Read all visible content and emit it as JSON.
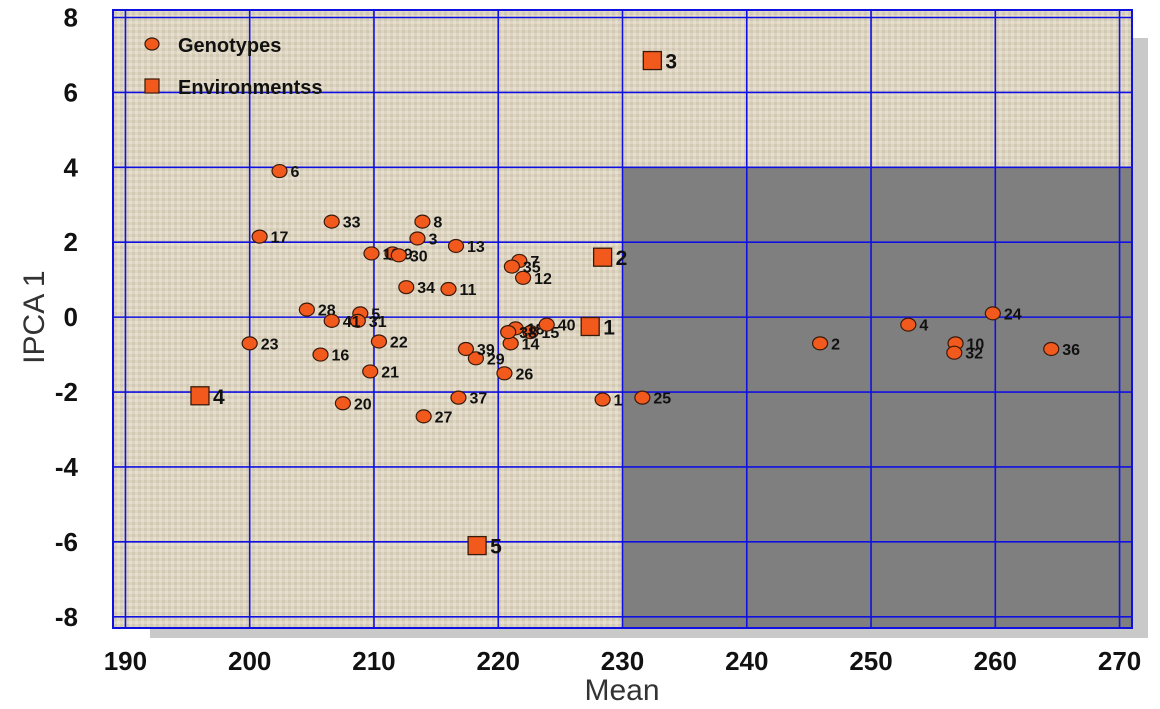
{
  "chart_data": {
    "type": "scatter",
    "title": "",
    "xlabel": "Mean",
    "ylabel": "IPCA 1",
    "xlim": [
      189,
      271
    ],
    "ylim": [
      -8.3,
      8.2
    ],
    "x_ticks": [
      190,
      200,
      210,
      220,
      230,
      240,
      250,
      260,
      270
    ],
    "y_ticks": [
      8,
      6,
      4,
      2,
      0,
      -2,
      -4,
      -6,
      -8
    ],
    "grid": true,
    "legend_position": "top-left",
    "colors": {
      "marker_fill": "#f25a1d",
      "marker_stroke": "#3a1a0a",
      "grid": "#1010e0",
      "plot_background": "#ddd5c2",
      "shaded_region": "#7f7f7f"
    },
    "shaded_region": {
      "x": [
        230,
        271
      ],
      "y": [
        -8.3,
        4
      ]
    },
    "series": [
      {
        "name": "Genotypes",
        "marker": "circle",
        "points": [
          {
            "label": "1",
            "x": 228.4,
            "y": -2.2
          },
          {
            "label": "2",
            "x": 245.9,
            "y": -0.7
          },
          {
            "label": "3",
            "x": 213.5,
            "y": 2.1
          },
          {
            "label": "4",
            "x": 253.0,
            "y": -0.2
          },
          {
            "label": "5",
            "x": 208.9,
            "y": 0.1
          },
          {
            "label": "6",
            "x": 202.4,
            "y": 3.9
          },
          {
            "label": "7",
            "x": 221.7,
            "y": 1.5
          },
          {
            "label": "8",
            "x": 213.9,
            "y": 2.55
          },
          {
            "label": "9",
            "x": 211.5,
            "y": 1.7
          },
          {
            "label": "10",
            "x": 256.8,
            "y": -0.7
          },
          {
            "label": "11",
            "x": 216.0,
            "y": 0.75
          },
          {
            "label": "12",
            "x": 222.0,
            "y": 1.05
          },
          {
            "label": "13",
            "x": 216.6,
            "y": 1.9
          },
          {
            "label": "14",
            "x": 221.0,
            "y": -0.7
          },
          {
            "label": "15",
            "x": 222.6,
            "y": -0.4
          },
          {
            "label": "16",
            "x": 205.7,
            "y": -1.0
          },
          {
            "label": "17",
            "x": 200.8,
            "y": 2.15
          },
          {
            "label": "18",
            "x": 221.4,
            "y": -0.3
          },
          {
            "label": "19",
            "x": 209.8,
            "y": 1.7
          },
          {
            "label": "20",
            "x": 207.5,
            "y": -2.3
          },
          {
            "label": "21",
            "x": 209.7,
            "y": -1.45
          },
          {
            "label": "22",
            "x": 210.4,
            "y": -0.65
          },
          {
            "label": "23",
            "x": 200.0,
            "y": -0.7
          },
          {
            "label": "24",
            "x": 259.8,
            "y": 0.1
          },
          {
            "label": "25",
            "x": 231.6,
            "y": -2.15
          },
          {
            "label": "26",
            "x": 220.5,
            "y": -1.5
          },
          {
            "label": "27",
            "x": 214.0,
            "y": -2.65
          },
          {
            "label": "28",
            "x": 204.6,
            "y": 0.2
          },
          {
            "label": "29",
            "x": 218.2,
            "y": -1.1
          },
          {
            "label": "30",
            "x": 212.0,
            "y": 1.65
          },
          {
            "label": "31",
            "x": 208.7,
            "y": -0.1
          },
          {
            "label": "32",
            "x": 256.7,
            "y": -0.95
          },
          {
            "label": "33",
            "x": 206.6,
            "y": 2.55
          },
          {
            "label": "34",
            "x": 212.6,
            "y": 0.8
          },
          {
            "label": "35",
            "x": 221.1,
            "y": 1.35
          },
          {
            "label": "36",
            "x": 264.5,
            "y": -0.85
          },
          {
            "label": "37",
            "x": 216.8,
            "y": -2.15
          },
          {
            "label": "38",
            "x": 220.8,
            "y": -0.4
          },
          {
            "label": "39",
            "x": 217.4,
            "y": -0.85
          },
          {
            "label": "40",
            "x": 223.9,
            "y": -0.2
          },
          {
            "label": "41",
            "x": 206.6,
            "y": -0.1
          }
        ]
      },
      {
        "name": "Environmentss",
        "marker": "square",
        "points": [
          {
            "label": "1",
            "x": 227.4,
            "y": -0.25
          },
          {
            "label": "2",
            "x": 228.4,
            "y": 1.6
          },
          {
            "label": "3",
            "x": 232.4,
            "y": 6.85
          },
          {
            "label": "4",
            "x": 196.0,
            "y": -2.1
          },
          {
            "label": "5",
            "x": 218.3,
            "y": -6.1
          }
        ]
      }
    ]
  }
}
